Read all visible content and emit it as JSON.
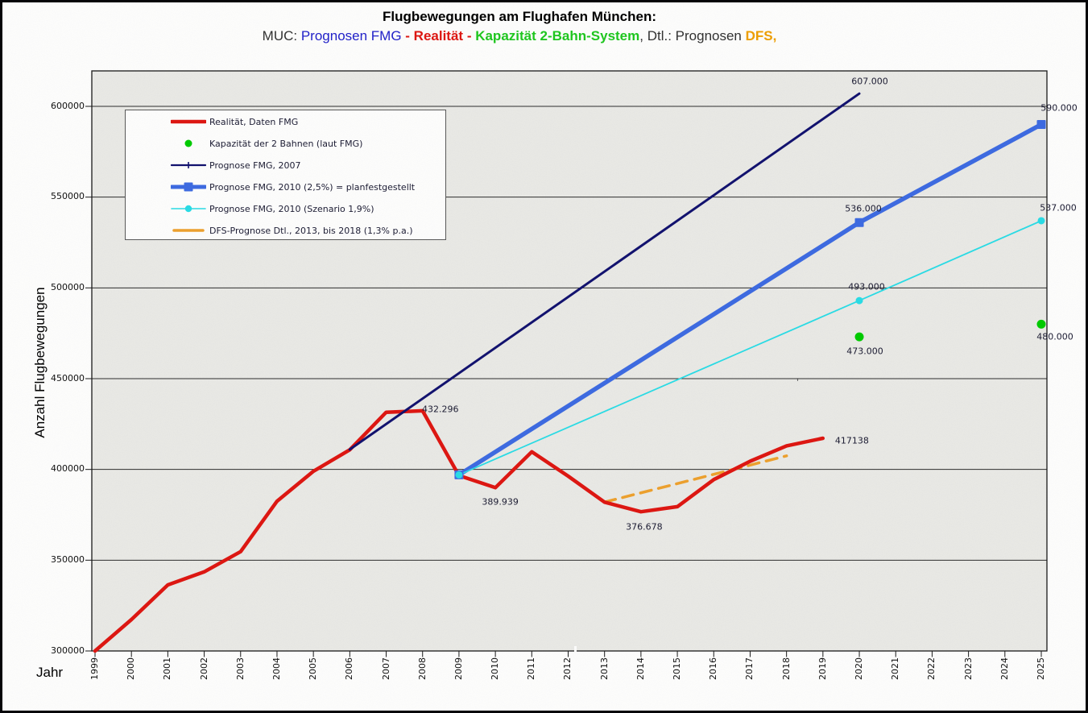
{
  "header": {
    "title": "Flugbewegungen am Flughafen München:",
    "subtitle_segments": [
      {
        "text": "MUC: ",
        "color": "#333333",
        "bold": false
      },
      {
        "text": "Prognosen FMG ",
        "color": "#2222cc",
        "bold": false
      },
      {
        "text": "- ",
        "color": "#e01712",
        "bold": true
      },
      {
        "text": "Realität",
        "color": "#e01712",
        "bold": true
      },
      {
        "text": " - ",
        "color": "#e01712",
        "bold": true
      },
      {
        "text": "Kapazität 2-Bahn-System",
        "color": "#1fc91f",
        "bold": true
      },
      {
        "text": ", Dtl.: Prognosen ",
        "color": "#333333",
        "bold": false
      },
      {
        "text": "DFS,",
        "color": "#f0a000",
        "bold": true
      }
    ]
  },
  "legend": {
    "items": [
      {
        "label": "Realität, Daten FMG",
        "glyph": {
          "type": "line",
          "color": "#e01712",
          "width": 4.5
        }
      },
      {
        "label": "Kapazität der 2 Bahnen (laut FMG)",
        "glyph": {
          "type": "dot",
          "color": "#00cd00",
          "size": 9
        }
      },
      {
        "label": "Prognose FMG, 2007",
        "glyph": {
          "type": "line-plus",
          "color": "#121270",
          "width": 2.2
        }
      },
      {
        "label": "Prognose FMG, 2010 (2,5%) = planfestgestellt",
        "glyph": {
          "type": "line-square",
          "color": "#3e6ce4",
          "width": 5
        }
      },
      {
        "label": "Prognose FMG, 2010 (Szenario 1,9%)",
        "glyph": {
          "type": "line-dot",
          "color": "#2adee8",
          "width": 1.6
        }
      },
      {
        "label": "DFS-Prognose Dtl., 2013, bis 2018 (1,3% p.a.)",
        "glyph": {
          "type": "dash",
          "color": "#efa22e",
          "width": 3.5
        }
      }
    ]
  },
  "axes": {
    "x_title": "Jahr",
    "y_title": "Anzahl Flugbewegungen",
    "x_ticks": [
      "1999",
      "2000",
      "2001",
      "2002",
      "2003",
      "2004",
      "2005",
      "2006",
      "2007",
      "2008",
      "2009",
      "2010",
      "2011",
      "2012",
      "2013",
      "2014",
      "2015",
      "2016",
      "2017",
      "2018",
      "2019",
      "2020",
      "2021",
      "2022",
      "2023",
      "2024",
      "2025"
    ],
    "y_ticks": [
      "300000",
      "350000",
      "400000",
      "450000",
      "500000",
      "550000",
      "600000"
    ],
    "x_range": [
      1999,
      2025
    ],
    "y_range": [
      300000,
      619500
    ],
    "gridline_step": 50000,
    "grid": "horizontal-only"
  },
  "chart_data": {
    "type": "line",
    "title": "Flugbewegungen am Flughafen München",
    "xlabel": "Jahr",
    "ylabel": "Anzahl Flugbewegungen",
    "ylim": [
      300000,
      619500
    ],
    "legend_position": "upper-left-inside",
    "plot_background": "#ebebe8",
    "series": [
      {
        "name": "Realität, Daten FMG",
        "color": "#e01712",
        "kind": "line",
        "width": 4.5,
        "points": [
          [
            1999,
            300000
          ],
          [
            2000,
            317300
          ],
          [
            2001,
            336400
          ],
          [
            2002,
            343600
          ],
          [
            2003,
            354700
          ],
          [
            2004,
            382500
          ],
          [
            2005,
            399000
          ],
          [
            2006,
            410800
          ],
          [
            2007,
            431500
          ],
          [
            2008,
            432296
          ],
          [
            2009,
            396600
          ],
          [
            2010,
            389939
          ],
          [
            2011,
            409700
          ],
          [
            2012,
            396300
          ],
          [
            2013,
            381951
          ],
          [
            2014,
            376678
          ],
          [
            2015,
            379500
          ],
          [
            2016,
            394400
          ],
          [
            2017,
            404500
          ],
          [
            2018,
            413000
          ],
          [
            2019,
            417138
          ]
        ]
      },
      {
        "name": "Kapazität der 2 Bahnen (laut FMG)",
        "color": "#00cd00",
        "kind": "scatter",
        "marker": {
          "shape": "circle",
          "size": 11
        },
        "points": [
          [
            2020,
            473000
          ],
          [
            2025,
            480000
          ]
        ]
      },
      {
        "name": "Prognose FMG, 2007",
        "color": "#121270",
        "kind": "line",
        "width": 3,
        "points": [
          [
            2006,
            411000
          ],
          [
            2020,
            607000
          ]
        ]
      },
      {
        "name": "Prognose FMG, 2010 (2,5%) = planfestgestellt",
        "color": "#3e6ce4",
        "kind": "line",
        "width": 5.5,
        "marker": {
          "shape": "square",
          "size": 11
        },
        "points": [
          [
            2009,
            397000
          ],
          [
            2020,
            536000
          ],
          [
            2025,
            590000
          ]
        ]
      },
      {
        "name": "Prognose FMG, 2010 (Szenario 1,9%)",
        "color": "#2adee8",
        "kind": "line",
        "width": 1.8,
        "marker": {
          "shape": "circle",
          "size": 9
        },
        "points": [
          [
            2009,
            397000
          ],
          [
            2020,
            493000
          ],
          [
            2025,
            537000
          ]
        ]
      },
      {
        "name": "DFS-Prognose Dtl., 2013, bis 2018 (1,3% p.a.)",
        "color": "#efa22e",
        "kind": "line",
        "width": 3.5,
        "dash": "14 9",
        "points": [
          [
            2013,
            382000
          ],
          [
            2018,
            407500
          ]
        ]
      }
    ],
    "point_labels": [
      {
        "text": "432.296",
        "year": 2008,
        "value": 432296
      },
      {
        "text": "389.939",
        "year": 2010,
        "value": 389939
      },
      {
        "text": "376.678",
        "year": 2014,
        "value": 376678
      },
      {
        "text": "417138",
        "year": 2019,
        "value": 417138
      },
      {
        "text": "607.000",
        "year": 2020,
        "value": 607000
      },
      {
        "text": "536.000",
        "year": 2020,
        "value": 536000
      },
      {
        "text": "493.000",
        "year": 2020,
        "value": 493000
      },
      {
        "text": "473.000",
        "year": 2020,
        "value": 473000
      },
      {
        "text": "590.000",
        "year": 2025,
        "value": 590000
      },
      {
        "text": "537.000",
        "year": 2025,
        "value": 537000
      },
      {
        "text": "480.000",
        "year": 2025,
        "value": 480000
      }
    ]
  },
  "artifacts": {
    "stray_mark": "’"
  }
}
